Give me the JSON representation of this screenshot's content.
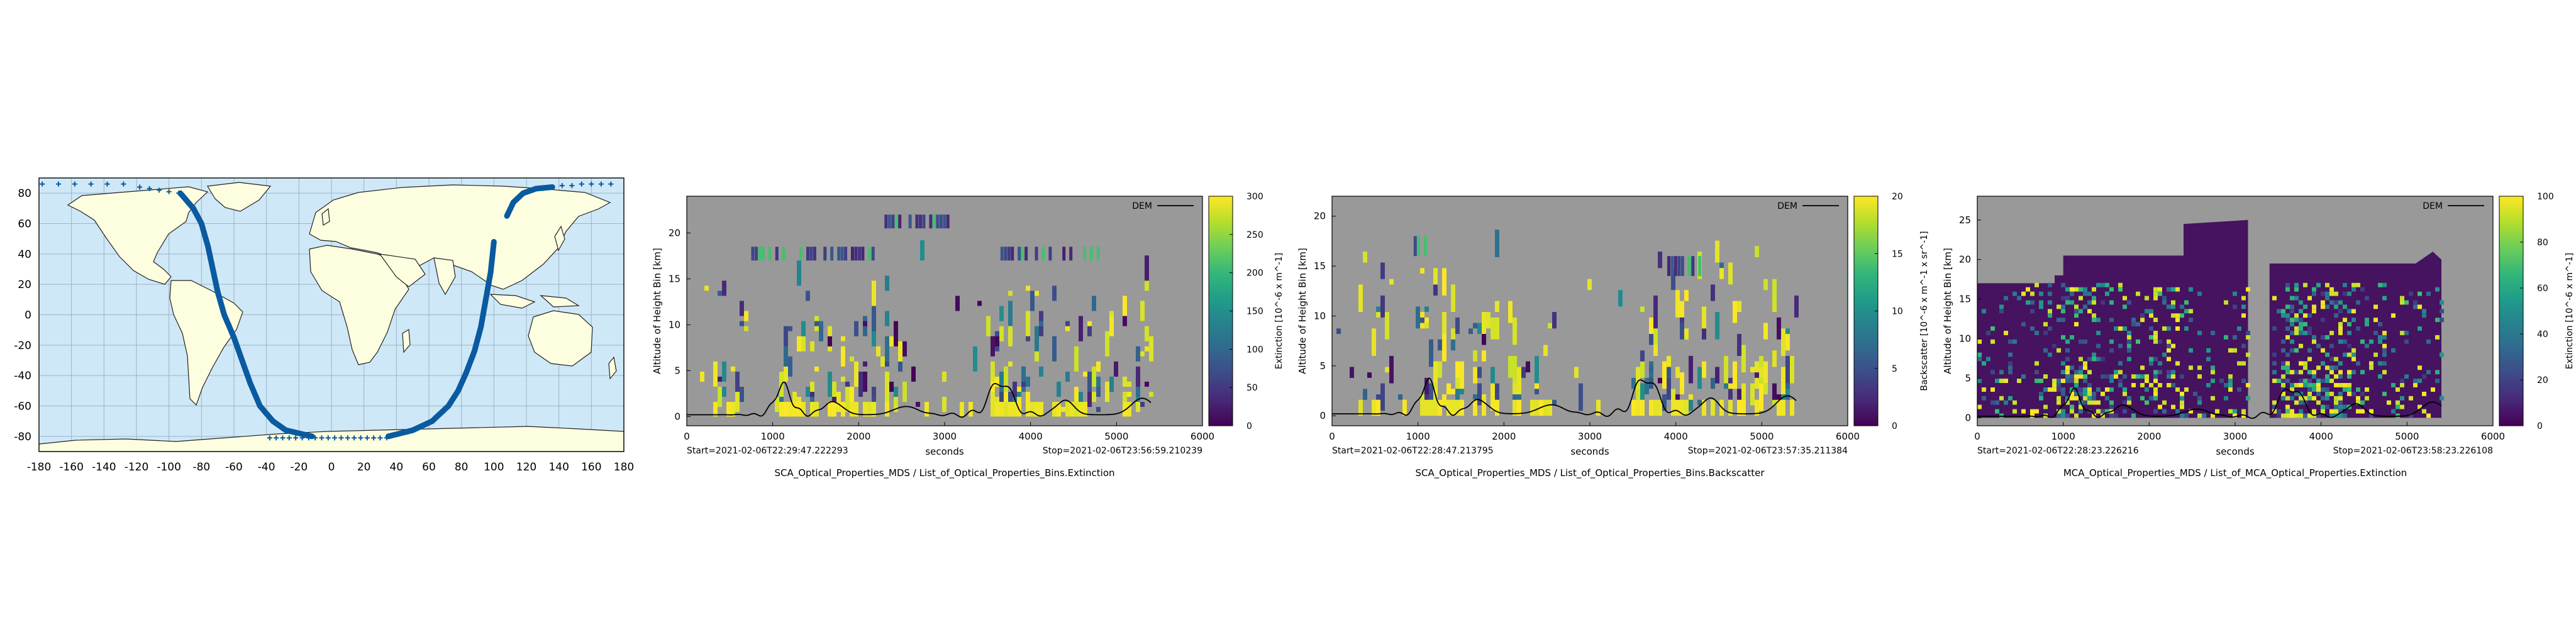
{
  "colors": {
    "map_ocean": "#cfe8f7",
    "map_land": "#fdfde0",
    "map_grid": "#9ab4c8",
    "track": "#0a5aa0",
    "plot_bg": "#999999",
    "dem_line": "#000000"
  },
  "chart_data": [
    {
      "type": "scatter",
      "kind": "map",
      "xlim": [
        -180,
        180
      ],
      "ylim": [
        -90,
        90
      ],
      "x_ticks": [
        "-180",
        "-160",
        "-140",
        "-120",
        "-100",
        "-80",
        "-60",
        "-40",
        "-20",
        "0",
        "20",
        "40",
        "60",
        "80",
        "100",
        "120",
        "140",
        "160",
        "180"
      ],
      "y_ticks": [
        "80",
        "60",
        "40",
        "20",
        "0",
        "-20",
        "-40",
        "-60",
        "-80"
      ],
      "grid": true,
      "track": {
        "descending": {
          "lon": [
            -93,
            -85,
            -80,
            -76,
            -73,
            -70,
            -66,
            -60,
            -55,
            -50,
            -44,
            -36,
            -28,
            -20,
            -12
          ],
          "lat": [
            80,
            70,
            60,
            45,
            30,
            15,
            0,
            -15,
            -30,
            -45,
            -60,
            -70,
            -76,
            -78,
            -80
          ]
        },
        "ascending": {
          "lon": [
            35,
            50,
            62,
            72,
            78,
            83,
            88,
            92,
            95,
            98,
            100
          ],
          "lat": [
            -80,
            -76,
            -70,
            -60,
            -50,
            -38,
            -24,
            -8,
            10,
            28,
            48
          ]
        },
        "return": {
          "lon": [
            108,
            112,
            118,
            126,
            136
          ],
          "lat": [
            65,
            74,
            80,
            83,
            84
          ]
        },
        "marker_row_north": {
          "lat": 86,
          "lon_start": -178,
          "lon_end": 172,
          "step": 10
        },
        "marker_row_arc": {
          "lon": [
            -118,
            -112,
            -106,
            -100,
            -94,
            118,
            124,
            130,
            136,
            142,
            148,
            154,
            160,
            166,
            172
          ],
          "lat": [
            84,
            83,
            82,
            81,
            80,
            80,
            82,
            83,
            84,
            85,
            85,
            86,
            86,
            86,
            86
          ]
        },
        "marker_row_south": {
          "lat": -81,
          "lon_start": -38,
          "lon_end": 34,
          "step": 4
        }
      }
    },
    {
      "type": "heatmap",
      "xlabel": "seconds",
      "ylabel": "Altitude of Height Bin [km]",
      "xlim": [
        0,
        6000
      ],
      "ylim": [
        -1,
        24
      ],
      "x_ticks": [
        "0",
        "1000",
        "2000",
        "3000",
        "4000",
        "5000",
        "6000"
      ],
      "y_ticks": [
        "0",
        "5",
        "10",
        "15",
        "20"
      ],
      "legend_label": "DEM",
      "start_label": "Start=2021-02-06T22:29:47.222293",
      "stop_label": "Stop=2021-02-06T23:56:59.210239",
      "caption": "SCA_Optical_Properties_MDS / List_of_Optical_Properties_Bins.Extinction",
      "colorbar_label": "Extinction [10^-6 x m^-1]",
      "colorbar_ticks": [
        "300",
        "250",
        "200",
        "150",
        "100",
        "50",
        "0"
      ],
      "vmin": 0,
      "vmax": 300,
      "seed": 11,
      "columns_end": 5400,
      "top_clusters": [
        [
          2300,
          3050,
          20.5,
          22
        ],
        [
          3650,
          4800,
          17,
          18.5
        ],
        [
          750,
          2200,
          17,
          18.5
        ]
      ]
    },
    {
      "type": "heatmap",
      "xlabel": "seconds",
      "ylabel": "Altitude of Height Bin [km]",
      "xlim": [
        0,
        6000
      ],
      "ylim": [
        -1,
        22
      ],
      "x_ticks": [
        "0",
        "1000",
        "2000",
        "3000",
        "4000",
        "5000",
        "6000"
      ],
      "y_ticks": [
        "0",
        "5",
        "10",
        "15",
        "20"
      ],
      "legend_label": "DEM",
      "start_label": "Start=2021-02-06T22:28:47.213795",
      "stop_label": "Stop=2021-02-06T23:57:35.211384",
      "caption": "SCA_Optical_Properties_MDS / List_of_Optical_Properties_Bins.Backscatter",
      "colorbar_label": "Backscatter [10^-6 x m^-1 x sr^-1]",
      "colorbar_ticks": [
        "20",
        "15",
        "10",
        "5",
        "0"
      ],
      "vmin": 0,
      "vmax": 20,
      "seed": 29,
      "columns_end": 5400,
      "top_clusters": [
        [
          950,
          1100,
          16,
          18
        ],
        [
          3900,
          4300,
          14,
          16
        ]
      ]
    },
    {
      "type": "heatmap",
      "xlabel": "seconds",
      "ylabel": "Altitude of Height Bin [km]",
      "xlim": [
        0,
        6000
      ],
      "ylim": [
        -1,
        28
      ],
      "x_ticks": [
        "0",
        "1000",
        "2000",
        "3000",
        "4000",
        "5000",
        "6000"
      ],
      "y_ticks": [
        "0",
        "5",
        "10",
        "15",
        "20",
        "25"
      ],
      "legend_label": "DEM",
      "start_label": "Start=2021-02-06T22:28:23.226216",
      "stop_label": "Stop=2021-02-06T23:58:23.226108",
      "caption": "MCA_Optical_Properties_MDS / List_of_MCA_Optical_Properties.Extinction",
      "colorbar_label": "Extinction [10^-6 x m^-1]",
      "colorbar_ticks": [
        "100",
        "80",
        "60",
        "40",
        "20",
        "0"
      ],
      "vmin": 0,
      "vmax": 100,
      "seed": 47,
      "columns_end": 5400,
      "filled_background": true,
      "top_profile": {
        "x": [
          0,
          900,
          900,
          1000,
          1000,
          2400,
          2400,
          3150,
          3150,
          3400,
          3400,
          5100,
          5300,
          5400
        ],
        "y": [
          17,
          17,
          18,
          18,
          20.5,
          20.5,
          24.5,
          25,
          0,
          0,
          19.5,
          19.5,
          21,
          20
        ]
      }
    }
  ]
}
